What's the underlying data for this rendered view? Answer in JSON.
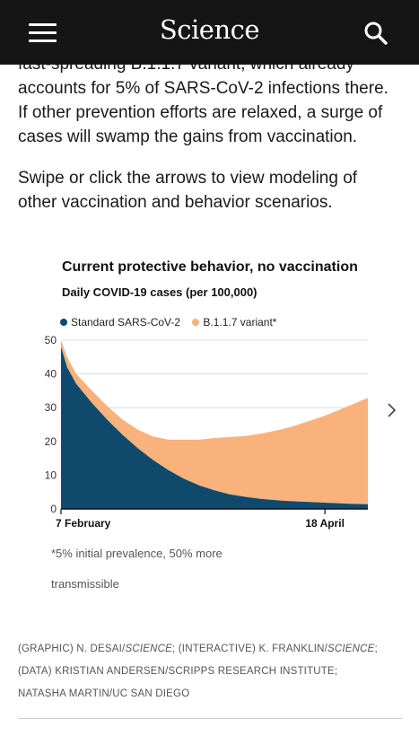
{
  "header": {
    "logo": "Science",
    "menu_icon": "hamburger-menu-icon",
    "search_icon": "search-icon"
  },
  "article": {
    "paragraph1": [
      "fast-spreading B.1.1.7 variant, which already",
      "accounts for 5% of SARS-CoV-2 infections there.",
      "If other prevention efforts are relaxed, a surge of",
      "cases will swamp the gains from vaccination."
    ],
    "paragraph2": [
      "Swipe or click the arrows to view modeling of",
      "other vaccination and behavior scenarios."
    ]
  },
  "chart_data": {
    "type": "area",
    "stacked": true,
    "title": "Current protective behavior, no vaccination",
    "subtitle": "Daily COVID-19 cases (per 100,000)",
    "legend_position": "top-left",
    "x": [
      0,
      2,
      5,
      10,
      15,
      20,
      25,
      30,
      35,
      40,
      45,
      50,
      55,
      60,
      65,
      70,
      75,
      80,
      85,
      90,
      95,
      100
    ],
    "x_tick_labels": [
      {
        "x": 0,
        "label": "7 February"
      },
      {
        "x": 86,
        "label": "18 April"
      }
    ],
    "series": [
      {
        "name": "Standard SARS-CoV-2",
        "color": "#0f4a6c",
        "values": [
          48,
          42,
          37,
          31.5,
          26.5,
          22,
          18,
          14.5,
          11.5,
          9,
          7,
          5.5,
          4.3,
          3.6,
          3,
          2.6,
          2.3,
          2.1,
          1.9,
          1.7,
          1.5,
          1.4
        ]
      },
      {
        "name": "B.1.1.7 variant*",
        "color": "#f9b27c",
        "values": [
          2,
          3,
          3,
          3.6,
          4,
          4.5,
          5.5,
          7,
          9,
          11.5,
          13.5,
          15.5,
          17,
          18,
          19.3,
          20.6,
          22,
          23.7,
          25.4,
          27.4,
          29.5,
          31.5
        ]
      }
    ],
    "y_ticks": [
      0,
      10,
      20,
      30,
      40,
      50
    ],
    "ylim": [
      0,
      50
    ],
    "xlim": [
      0,
      100
    ],
    "grid": "horizontal",
    "footnote": [
      "*5% initial prevalence, 50% more",
      "transmissible"
    ],
    "next_icon": "chevron-right-icon"
  },
  "credits": {
    "line1": {
      "a": "(GRAPHIC) N. DESAI/",
      "b": "SCIENCE",
      "c": "; (INTERACTIVE) K. FRANKLIN/",
      "d": "SCIENCE",
      "e": ";"
    },
    "line2": "(DATA) KRISTIAN ANDERSEN/SCRIPPS RESEARCH INSTITUTE;",
    "line3": "NATASHA MARTIN/UC SAN DIEGO"
  }
}
